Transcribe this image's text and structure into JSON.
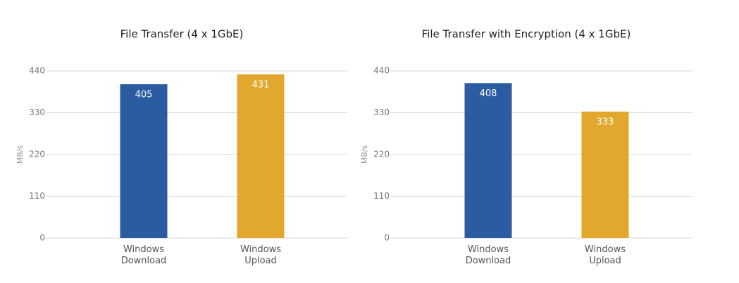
{
  "chart_data": [
    {
      "type": "bar",
      "title": "File Transfer (4 x 1GbE)",
      "y_label": "MB/s",
      "categories": [
        "Windows Download",
        "Windows Upload"
      ],
      "values": [
        405,
        431
      ],
      "colors": [
        "#2b5ba0",
        "#e1a82d"
      ],
      "ylim": [
        0,
        440
      ],
      "yticks": [
        0,
        110,
        220,
        330,
        440
      ],
      "grid": true
    },
    {
      "type": "bar",
      "title": "File Transfer with Encryption (4 x 1GbE)",
      "y_label": "MB/s",
      "categories": [
        "Windows Download",
        "Windows Upload"
      ],
      "values": [
        408,
        333
      ],
      "colors": [
        "#2b5ba0",
        "#e1a82d"
      ],
      "ylim": [
        0,
        440
      ],
      "yticks": [
        0,
        110,
        220,
        330,
        440
      ],
      "grid": true
    }
  ]
}
